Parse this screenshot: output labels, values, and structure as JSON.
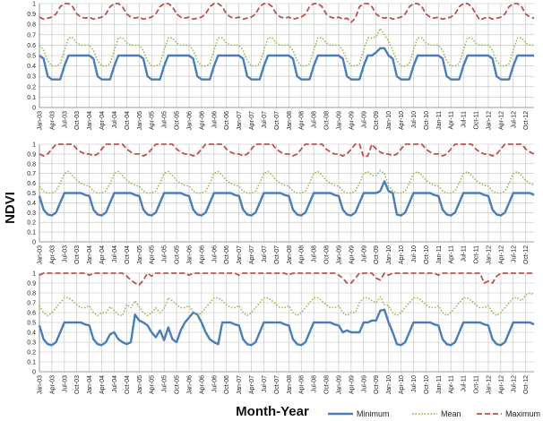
{
  "ylabel": "NDVI",
  "xlabel": "Month-Year",
  "colors": {
    "minimum": "#4a7ebb",
    "mean": "#9bbb59",
    "maximum": "#c0504d",
    "grid": "#bfbfbf"
  },
  "legend": [
    {
      "key": "minimum",
      "label": "Minimum",
      "style": "solid"
    },
    {
      "key": "mean",
      "label": "Mean",
      "style": "dotted"
    },
    {
      "key": "maximum",
      "label": "Maximum",
      "style": "dashed"
    }
  ],
  "chart_data": [
    {
      "type": "line",
      "panel": "top",
      "ylim": [
        0,
        1
      ],
      "yticks": [
        "0",
        "0.1",
        "0.2",
        "0.3",
        "0.4",
        "0.5",
        "0.6",
        "0.7",
        "0.8",
        "0.9",
        "1"
      ],
      "x_start": "Jan-03",
      "x_end": "Dec-12",
      "x_tick_labels": [
        "Jan-03",
        "Apr-03",
        "Jul-03",
        "Oct-03",
        "Jan-04",
        "Apr-04",
        "Jul-04",
        "Oct-04",
        "Jan-05",
        "Apr-05",
        "Jul-05",
        "Oct-05",
        "Jan-06",
        "Apr-06",
        "Jul-06",
        "Oct-06",
        "Jan-07",
        "Apr-07",
        "Jul-07",
        "Oct-07",
        "Jan-08",
        "Apr-08",
        "Jul-08",
        "Oct-08",
        "Jan-09",
        "Apr-09",
        "Jul-09",
        "Oct-09",
        "Jan-10",
        "Apr-10",
        "Jul-10",
        "Oct-10",
        "Jan-11",
        "Apr-11",
        "Jul-11",
        "Oct-11",
        "Jan-12",
        "Apr-12",
        "Jul-12",
        "Oct-12"
      ],
      "grid": true,
      "series": [
        {
          "name": "Minimum",
          "pattern": [
            0.5,
            0.47,
            0.3,
            0.27,
            0.27,
            0.27,
            0.4,
            0.5,
            0.5,
            0.5,
            0.5,
            0.5
          ],
          "anomalies": {
            "81": 0.53,
            "82": 0.57,
            "83": 0.57,
            "84": 0.5
          }
        },
        {
          "name": "Mean",
          "pattern": [
            0.6,
            0.55,
            0.45,
            0.4,
            0.4,
            0.42,
            0.55,
            0.67,
            0.67,
            0.62,
            0.6,
            0.6
          ],
          "anomalies": {
            "81": 0.68,
            "82": 0.76,
            "83": 0.7,
            "84": 0.64
          }
        },
        {
          "name": "Maximum",
          "pattern": [
            0.87,
            0.85,
            0.86,
            0.87,
            0.9,
            0.97,
            1.0,
            1.0,
            0.97,
            0.9,
            0.87,
            0.86
          ],
          "anomalies": {
            "75": 0.82,
            "76": 0.86,
            "106": 0.84
          }
        }
      ]
    },
    {
      "type": "line",
      "panel": "middle",
      "ylim": [
        0,
        1
      ],
      "yticks": [
        "0",
        "0.1",
        "0.2",
        "0.3",
        "0.4",
        "0.5",
        "0.6",
        "0.7",
        "0.8",
        "0.9",
        "1"
      ],
      "x_start": "Jan-03",
      "x_end": "Dec-12",
      "x_tick_labels": [
        "Jan-03",
        "Apr-03",
        "Jul-03",
        "Oct-03",
        "Jan-04",
        "Apr-04",
        "Jul-04",
        "Oct-04",
        "Jan-05",
        "Apr-05",
        "Jul-05",
        "Oct-05",
        "Jan-06",
        "Apr-06",
        "Jul-06",
        "Oct-06",
        "Jan-07",
        "Apr-07",
        "Jul-07",
        "Oct-07",
        "Jan-08",
        "Apr-08",
        "Jul-08",
        "Oct-08",
        "Jan-09",
        "Apr-09",
        "Jul-09",
        "Oct-09",
        "Jan-10",
        "Apr-10",
        "Jul-10",
        "Oct-10",
        "Jan-11",
        "Apr-11",
        "Jul-11",
        "Oct-11",
        "Jan-12",
        "Apr-12",
        "Jul-12",
        "Oct-12"
      ],
      "grid": true,
      "series": [
        {
          "name": "Minimum",
          "pattern": [
            0.47,
            0.33,
            0.28,
            0.27,
            0.3,
            0.4,
            0.5,
            0.5,
            0.5,
            0.5,
            0.5,
            0.48
          ],
          "anomalies": {
            "81": 0.5,
            "82": 0.52,
            "83": 0.62,
            "84": 0.52,
            "85": 0.5
          }
        },
        {
          "name": "Mean",
          "pattern": [
            0.57,
            0.52,
            0.5,
            0.5,
            0.52,
            0.6,
            0.7,
            0.72,
            0.68,
            0.63,
            0.6,
            0.58
          ],
          "anomalies": {
            "81": 0.68,
            "82": 0.73,
            "83": 0.7
          }
        },
        {
          "name": "Maximum",
          "pattern": [
            0.9,
            0.88,
            0.9,
            0.95,
            1.0,
            1.0,
            1.0,
            1.0,
            1.0,
            0.95,
            0.92,
            0.9
          ],
          "anomalies": {
            "78": 0.87,
            "79": 0.88
          }
        }
      ]
    },
    {
      "type": "line",
      "panel": "bottom",
      "ylim": [
        0,
        1
      ],
      "yticks": [
        "0",
        "0.1",
        "0.2",
        "0.3",
        "0.4",
        "0.5",
        "0.6",
        "0.7",
        "0.8",
        "0.9",
        "1"
      ],
      "x_start": "Jan-03",
      "x_end": "Dec-12",
      "x_tick_labels": [
        "Jan-03",
        "Apr-03",
        "Jul-03",
        "Oct-03",
        "Jan-04",
        "Apr-04",
        "Jul-04",
        "Oct-04",
        "Jan-05",
        "Apr-05",
        "Jul-05",
        "Oct-05",
        "Jan-06",
        "Apr-06",
        "Jul-06",
        "Oct-06",
        "Jan-07",
        "Apr-07",
        "Jul-07",
        "Oct-07",
        "Jan-08",
        "Apr-08",
        "Jul-08",
        "Oct-08",
        "Jan-09",
        "Apr-09",
        "Jul-09",
        "Oct-09",
        "Jan-10",
        "Apr-10",
        "Jul-10",
        "Oct-10",
        "Jan-11",
        "Apr-11",
        "Jul-11",
        "Oct-11",
        "Jan-12",
        "Apr-12",
        "Jul-12",
        "Oct-12"
      ],
      "grid": true,
      "series": [
        {
          "name": "Minimum",
          "pattern": [
            0.47,
            0.33,
            0.28,
            0.27,
            0.3,
            0.4,
            0.5,
            0.5,
            0.5,
            0.5,
            0.5,
            0.48
          ],
          "anomalies": {
            "16": 0.3,
            "17": 0.38,
            "18": 0.4,
            "19": 0.33,
            "20": 0.3,
            "21": 0.28,
            "22": 0.3,
            "23": 0.58,
            "24": 0.52,
            "25": 0.5,
            "26": 0.47,
            "27": 0.4,
            "28": 0.35,
            "29": 0.42,
            "30": 0.32,
            "31": 0.45,
            "32": 0.33,
            "33": 0.3,
            "34": 0.42,
            "35": 0.5,
            "36": 0.55,
            "37": 0.6,
            "38": 0.58,
            "39": 0.5,
            "40": 0.4,
            "41": 0.33,
            "42": 0.3,
            "43": 0.28,
            "73": 0.4,
            "74": 0.42,
            "75": 0.4,
            "76": 0.4,
            "80": 0.52,
            "81": 0.52,
            "82": 0.62,
            "83": 0.63,
            "84": 0.5,
            "85": 0.4
          }
        },
        {
          "name": "Mean",
          "pattern": [
            0.67,
            0.6,
            0.57,
            0.6,
            0.65,
            0.7,
            0.75,
            0.75,
            0.72,
            0.68,
            0.65,
            0.65
          ],
          "anomalies": {
            "16": 0.6,
            "17": 0.66,
            "18": 0.62,
            "19": 0.58,
            "20": 0.57,
            "23": 0.72,
            "24": 0.66,
            "27": 0.6,
            "28": 0.65,
            "29": 0.6,
            "30": 0.64,
            "76": 0.6,
            "81": 0.7,
            "82": 0.76,
            "83": 0.68,
            "116": 0.72,
            "117": 0.78,
            "118": 0.8,
            "119": 0.78
          }
        },
        {
          "name": "Maximum",
          "pattern": [
            0.98,
            1.0,
            1.0,
            1.0,
            1.0,
            1.0,
            1.0,
            1.0,
            1.0,
            1.0,
            1.0,
            1.0
          ],
          "anomalies": {
            "21": 0.97,
            "22": 0.93,
            "23": 0.9,
            "24": 0.88,
            "25": 0.93,
            "27": 0.97,
            "73": 0.95,
            "74": 0.9,
            "75": 0.9,
            "76": 0.95,
            "81": 0.95,
            "82": 0.93,
            "107": 0.9,
            "108": 0.92,
            "109": 0.9,
            "110": 0.97
          }
        }
      ]
    }
  ]
}
